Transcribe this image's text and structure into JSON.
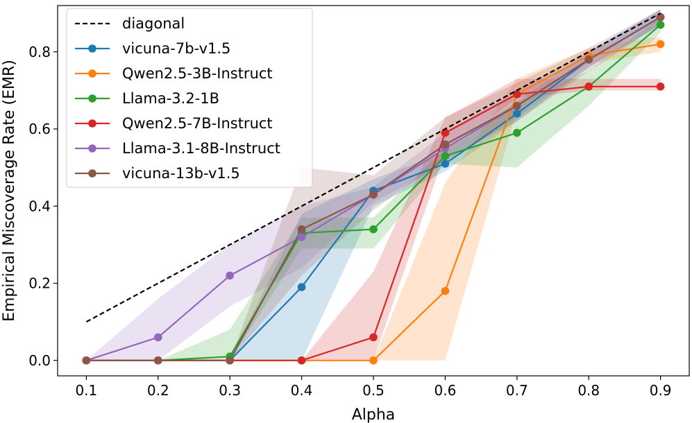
{
  "chart_data": {
    "type": "line",
    "title": "",
    "xlabel": "Alpha",
    "ylabel": "Empirical Miscoverage Rate (EMR)",
    "xlim": [
      0.06,
      0.94
    ],
    "ylim": [
      -0.04,
      0.92
    ],
    "x": [
      0.1,
      0.2,
      0.3,
      0.4,
      0.5,
      0.6,
      0.7,
      0.8,
      0.9
    ],
    "x_ticks": [
      "0.1",
      "0.2",
      "0.3",
      "0.4",
      "0.5",
      "0.6",
      "0.7",
      "0.8",
      "0.9"
    ],
    "y_ticks": [
      0.0,
      0.2,
      0.4,
      0.6,
      0.8
    ],
    "y_tick_labels": [
      "0.0",
      "0.2",
      "0.4",
      "0.6",
      "0.8"
    ],
    "grid": false,
    "legend_position": "top-left",
    "reference_line": {
      "name": "diagonal",
      "x": [
        0.1,
        0.9
      ],
      "y": [
        0.1,
        0.9
      ],
      "style": "dashed",
      "color": "#000000"
    },
    "series": [
      {
        "name": "vicuna-7b-v1.5",
        "color": "#1f77b4",
        "values": [
          0.0,
          0.0,
          0.0,
          0.19,
          0.44,
          0.51,
          0.64,
          0.78,
          0.89
        ],
        "lower": [
          0.0,
          0.0,
          0.0,
          0.0,
          0.4,
          0.49,
          0.62,
          0.76,
          0.87
        ],
        "upper": [
          0.0,
          0.0,
          0.0,
          0.38,
          0.47,
          0.54,
          0.67,
          0.8,
          0.91
        ]
      },
      {
        "name": "Qwen2.5-3B-Instruct",
        "color": "#ff7f0e",
        "values": [
          0.0,
          0.0,
          0.0,
          0.0,
          0.0,
          0.18,
          0.69,
          0.79,
          0.82
        ],
        "lower": [
          0.0,
          0.0,
          0.0,
          0.0,
          0.0,
          0.0,
          0.65,
          0.77,
          0.8
        ],
        "upper": [
          0.0,
          0.0,
          0.0,
          0.0,
          0.0,
          0.46,
          0.73,
          0.81,
          0.84
        ]
      },
      {
        "name": "Llama-3.2-1B",
        "color": "#2ca02c",
        "values": [
          0.0,
          0.0,
          0.01,
          0.33,
          0.34,
          0.53,
          0.59,
          0.71,
          0.87
        ],
        "lower": [
          0.0,
          0.0,
          0.0,
          0.29,
          0.29,
          0.51,
          0.5,
          0.66,
          0.85
        ],
        "upper": [
          0.0,
          0.0,
          0.08,
          0.37,
          0.37,
          0.55,
          0.67,
          0.75,
          0.89
        ]
      },
      {
        "name": "Qwen2.5-7B-Instruct",
        "color": "#d62728",
        "values": [
          0.0,
          0.0,
          0.0,
          0.0,
          0.06,
          0.59,
          0.69,
          0.71,
          0.71
        ],
        "lower": [
          0.0,
          0.0,
          0.0,
          0.0,
          0.0,
          0.54,
          0.68,
          0.7,
          0.7
        ],
        "upper": [
          0.0,
          0.0,
          0.0,
          0.0,
          0.23,
          0.63,
          0.73,
          0.73,
          0.73
        ]
      },
      {
        "name": "Llama-3.1-8B-Instruct",
        "color": "#9467bd",
        "values": [
          0.0,
          0.06,
          0.22,
          0.32,
          0.43,
          0.55,
          0.66,
          0.78,
          0.89
        ],
        "lower": [
          0.0,
          0.0,
          0.14,
          0.24,
          0.41,
          0.51,
          0.63,
          0.76,
          0.87
        ],
        "upper": [
          0.0,
          0.16,
          0.3,
          0.4,
          0.45,
          0.59,
          0.7,
          0.8,
          0.91
        ]
      },
      {
        "name": "vicuna-13b-v1.5",
        "color": "#8c564b",
        "values": [
          0.0,
          0.0,
          0.0,
          0.34,
          0.43,
          0.56,
          0.66,
          0.78,
          0.89
        ],
        "lower": [
          0.0,
          0.0,
          0.0,
          0.22,
          0.39,
          0.52,
          0.62,
          0.75,
          0.87
        ],
        "upper": [
          0.0,
          0.0,
          0.0,
          0.5,
          0.48,
          0.63,
          0.72,
          0.81,
          0.91
        ]
      }
    ]
  }
}
